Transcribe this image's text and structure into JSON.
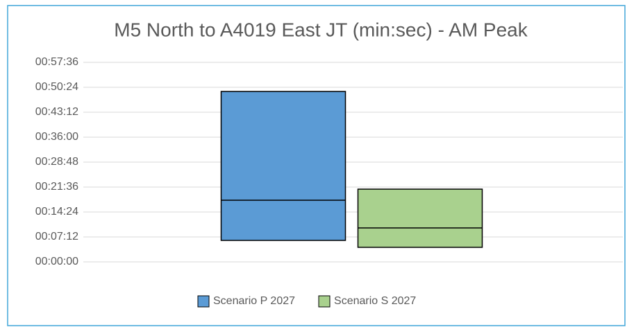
{
  "chart_data": {
    "type": "box",
    "title": "M5 North to A4019 East JT (min:sec) - AM Peak",
    "ylim": [
      0,
      3456
    ],
    "yticks": [
      {
        "value": 0,
        "label": "00:00:00"
      },
      {
        "value": 432,
        "label": "00:07:12"
      },
      {
        "value": 864,
        "label": "00:14:24"
      },
      {
        "value": 1296,
        "label": "00:21:36"
      },
      {
        "value": 1728,
        "label": "00:28:48"
      },
      {
        "value": 2160,
        "label": "00:36:00"
      },
      {
        "value": 2592,
        "label": "00:43:12"
      },
      {
        "value": 3024,
        "label": "00:50:24"
      },
      {
        "value": 3456,
        "label": "00:57:36"
      }
    ],
    "grid": true,
    "legend": "bottom",
    "series": [
      {
        "name": "Scenario P 2027",
        "color": "#5b9bd5",
        "low": [
          372
        ],
        "median": [
          1068
        ],
        "high": [
          2952
        ]
      },
      {
        "name": "Scenario S 2027",
        "color": "#a9d18e",
        "low": [
          252
        ],
        "median": [
          588
        ],
        "high": [
          1260
        ]
      }
    ]
  }
}
